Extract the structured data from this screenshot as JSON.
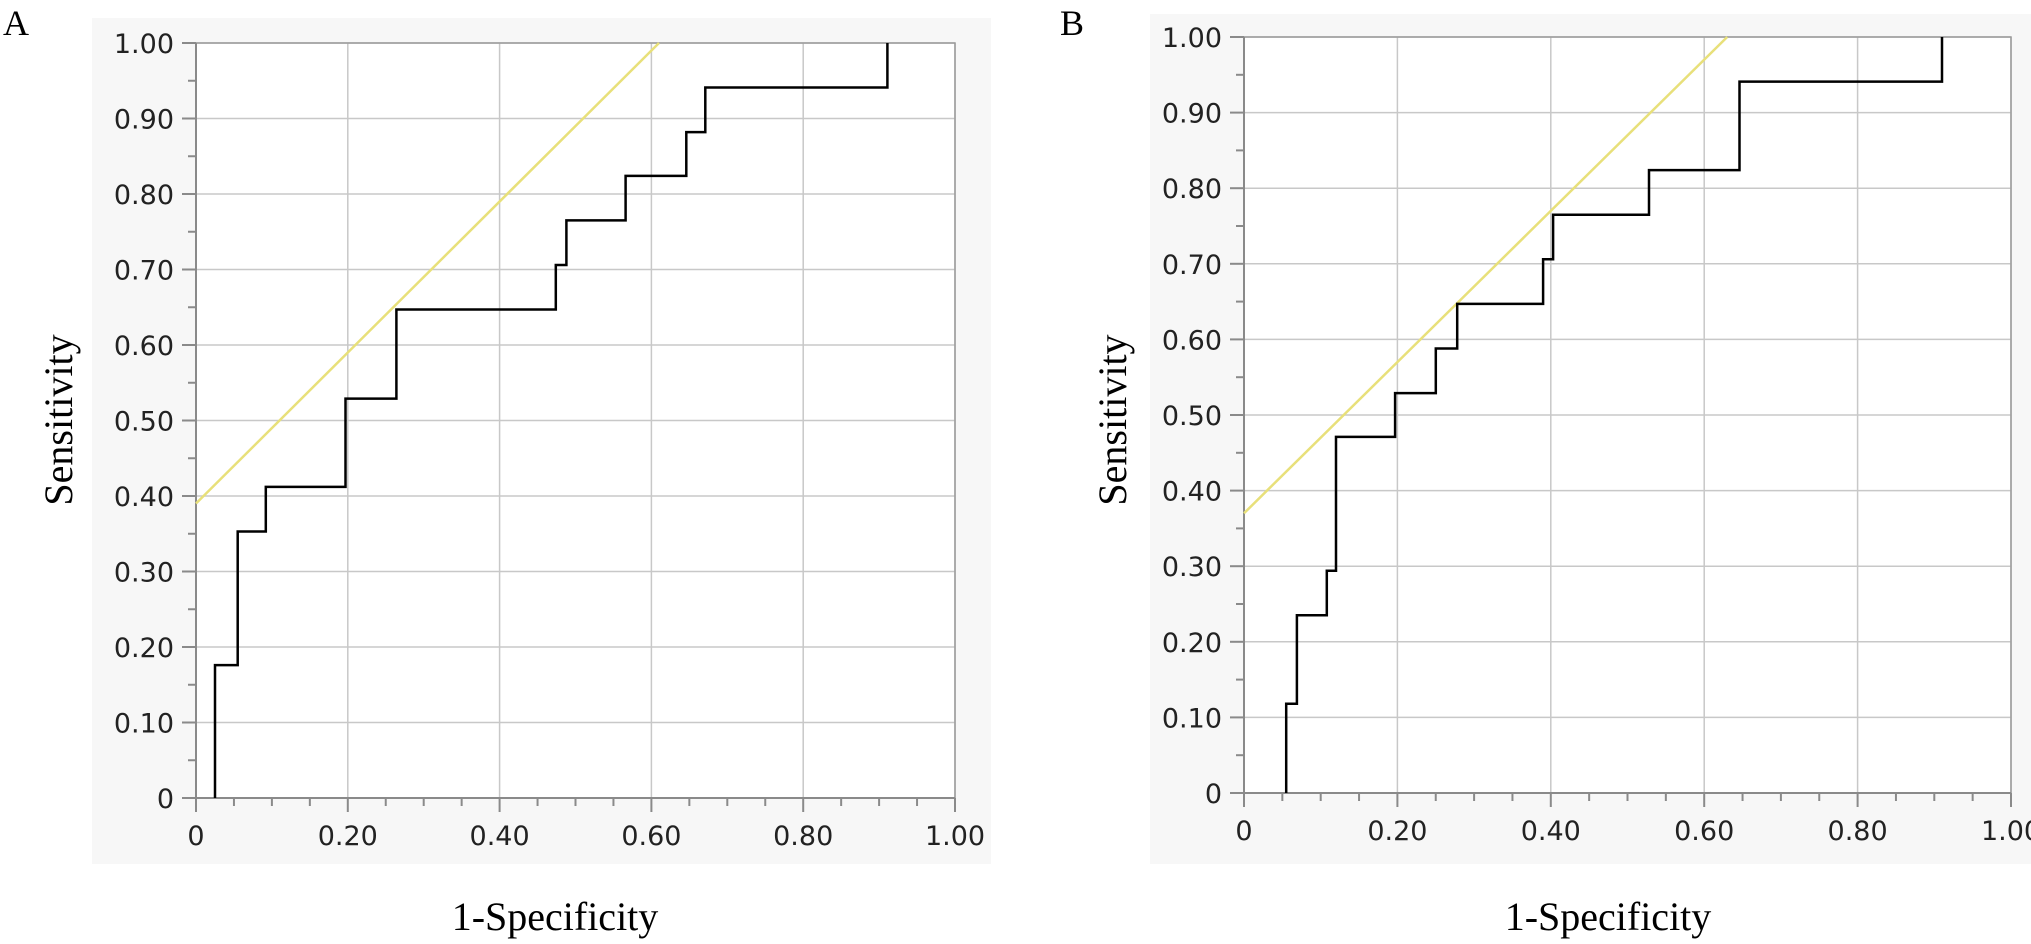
{
  "chart_data": [
    {
      "type": "line",
      "panel_label": "A",
      "xlabel": "1-Specificity",
      "ylabel": "Sensitivity",
      "xlim": [
        0,
        1
      ],
      "ylim": [
        0,
        1
      ],
      "x_tick_labels": [
        "0",
        "0.20",
        "0.40",
        "0.60",
        "0.80",
        "1.00"
      ],
      "y_tick_labels": [
        "0",
        "0.10",
        "0.20",
        "0.30",
        "0.40",
        "0.50",
        "0.60",
        "0.70",
        "0.80",
        "0.90",
        "1.00"
      ],
      "grid": true,
      "colors": {
        "roc": "#000000",
        "reference": "#e8e07a"
      },
      "series": [
        {
          "x": [
            0.025,
            0.025,
            0.055,
            0.055,
            0.092,
            0.092,
            0.197,
            0.197,
            0.264,
            0.264,
            0.474,
            0.474,
            0.488,
            0.488,
            0.566,
            0.566,
            0.646,
            0.646,
            0.671,
            0.671,
            0.911,
            0.911
          ],
          "y": [
            0,
            0.176,
            0.176,
            0.353,
            0.353,
            0.412,
            0.412,
            0.529,
            0.529,
            0.647,
            0.647,
            0.706,
            0.706,
            0.765,
            0.765,
            0.824,
            0.824,
            0.882,
            0.882,
            0.941,
            0.941,
            1.0
          ]
        },
        {
          "x": [
            0,
            0.61
          ],
          "y": [
            0.39,
            1.0
          ]
        }
      ]
    },
    {
      "type": "line",
      "panel_label": "B",
      "xlabel": "1-Specificity",
      "ylabel": "Sensitivity",
      "xlim": [
        0,
        1
      ],
      "ylim": [
        0,
        1
      ],
      "x_tick_labels": [
        "0",
        "0.20",
        "0.40",
        "0.60",
        "0.80",
        "1.00"
      ],
      "y_tick_labels": [
        "0",
        "0.10",
        "0.20",
        "0.30",
        "0.40",
        "0.50",
        "0.60",
        "0.70",
        "0.80",
        "0.90",
        "1.00"
      ],
      "grid": true,
      "colors": {
        "roc": "#000000",
        "reference": "#e8e07a"
      },
      "series": [
        {
          "x": [
            0.055,
            0.055,
            0.069,
            0.069,
            0.108,
            0.108,
            0.12,
            0.12,
            0.197,
            0.197,
            0.25,
            0.25,
            0.278,
            0.278,
            0.39,
            0.39,
            0.403,
            0.403,
            0.528,
            0.528,
            0.646,
            0.646,
            0.91,
            0.91
          ],
          "y": [
            0,
            0.118,
            0.118,
            0.235,
            0.235,
            0.294,
            0.294,
            0.471,
            0.471,
            0.529,
            0.529,
            0.588,
            0.588,
            0.647,
            0.647,
            0.706,
            0.706,
            0.765,
            0.765,
            0.824,
            0.824,
            0.941,
            0.941,
            1.0
          ]
        },
        {
          "x": [
            0,
            0.63
          ],
          "y": [
            0.37,
            1.0
          ]
        }
      ]
    }
  ]
}
